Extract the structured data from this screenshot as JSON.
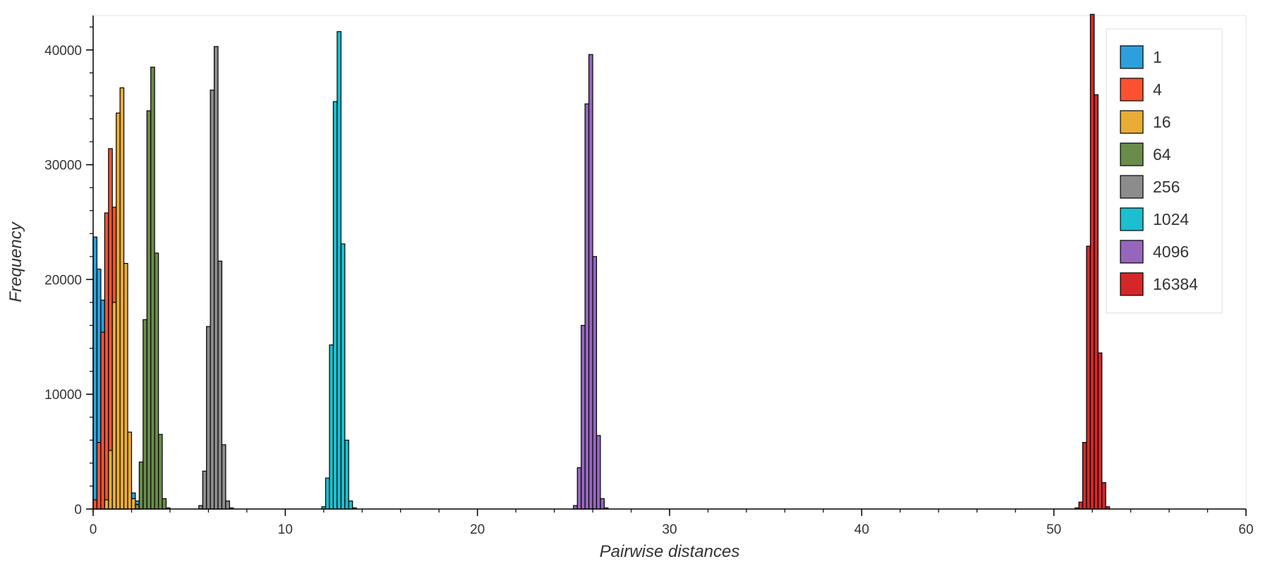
{
  "chart_data": {
    "type": "bar",
    "title": "",
    "xlabel": "Pairwise distances",
    "ylabel": "Frequency",
    "xlim": [
      0,
      60
    ],
    "ylim": [
      0,
      43000
    ],
    "xticks": [
      0,
      10,
      20,
      30,
      40,
      50,
      60
    ],
    "xtick_labels": [
      "0",
      "10",
      "20",
      "30",
      "40",
      "50",
      "60"
    ],
    "yticks": [
      0,
      10000,
      20000,
      30000,
      40000
    ],
    "ytick_labels": [
      "0",
      "10000",
      "20000",
      "30000",
      "40000"
    ],
    "grid": false,
    "legend_position": "top-right",
    "bin_width": 0.2,
    "series": [
      {
        "name": "1",
        "color": "#2ca0dc",
        "bin_start": 0.0,
        "values": [
          23700,
          20900,
          18200,
          15500,
          12900,
          10400,
          8000,
          5800,
          3900,
          2400,
          1400,
          700,
          300
        ]
      },
      {
        "name": "4",
        "color": "#fc5130",
        "bin_start": 0.0,
        "values": [
          800,
          5800,
          15400,
          25800,
          31400,
          26300,
          14000,
          5300,
          800
        ]
      },
      {
        "name": "16",
        "color": "#e8ac37",
        "bin_start": 0.6,
        "values": [
          800,
          5100,
          18000,
          34500,
          36700,
          21400,
          6700,
          900,
          300
        ]
      },
      {
        "name": "64",
        "color": "#6a8c4a",
        "bin_start": 2.2,
        "values": [
          400,
          4100,
          16500,
          34700,
          38500,
          22300,
          6500,
          900,
          100
        ]
      },
      {
        "name": "256",
        "color": "#8c8c8c",
        "bin_start": 5.5,
        "values": [
          300,
          3300,
          15900,
          36500,
          40300,
          21600,
          5600,
          700,
          100
        ]
      },
      {
        "name": "1024",
        "color": "#1bbfcf",
        "bin_start": 11.9,
        "values": [
          200,
          2700,
          14300,
          35500,
          41600,
          23100,
          6000,
          700,
          100
        ]
      },
      {
        "name": "4096",
        "color": "#9467bd",
        "bin_start": 25.0,
        "values": [
          300,
          3600,
          16000,
          35300,
          39600,
          22000,
          6400,
          900,
          100
        ]
      },
      {
        "name": "16384",
        "color": "#d62728",
        "bin_start": 51.1,
        "values": [
          100,
          600,
          5800,
          22900,
          43100,
          36100,
          13600,
          2300,
          200
        ]
      }
    ]
  }
}
